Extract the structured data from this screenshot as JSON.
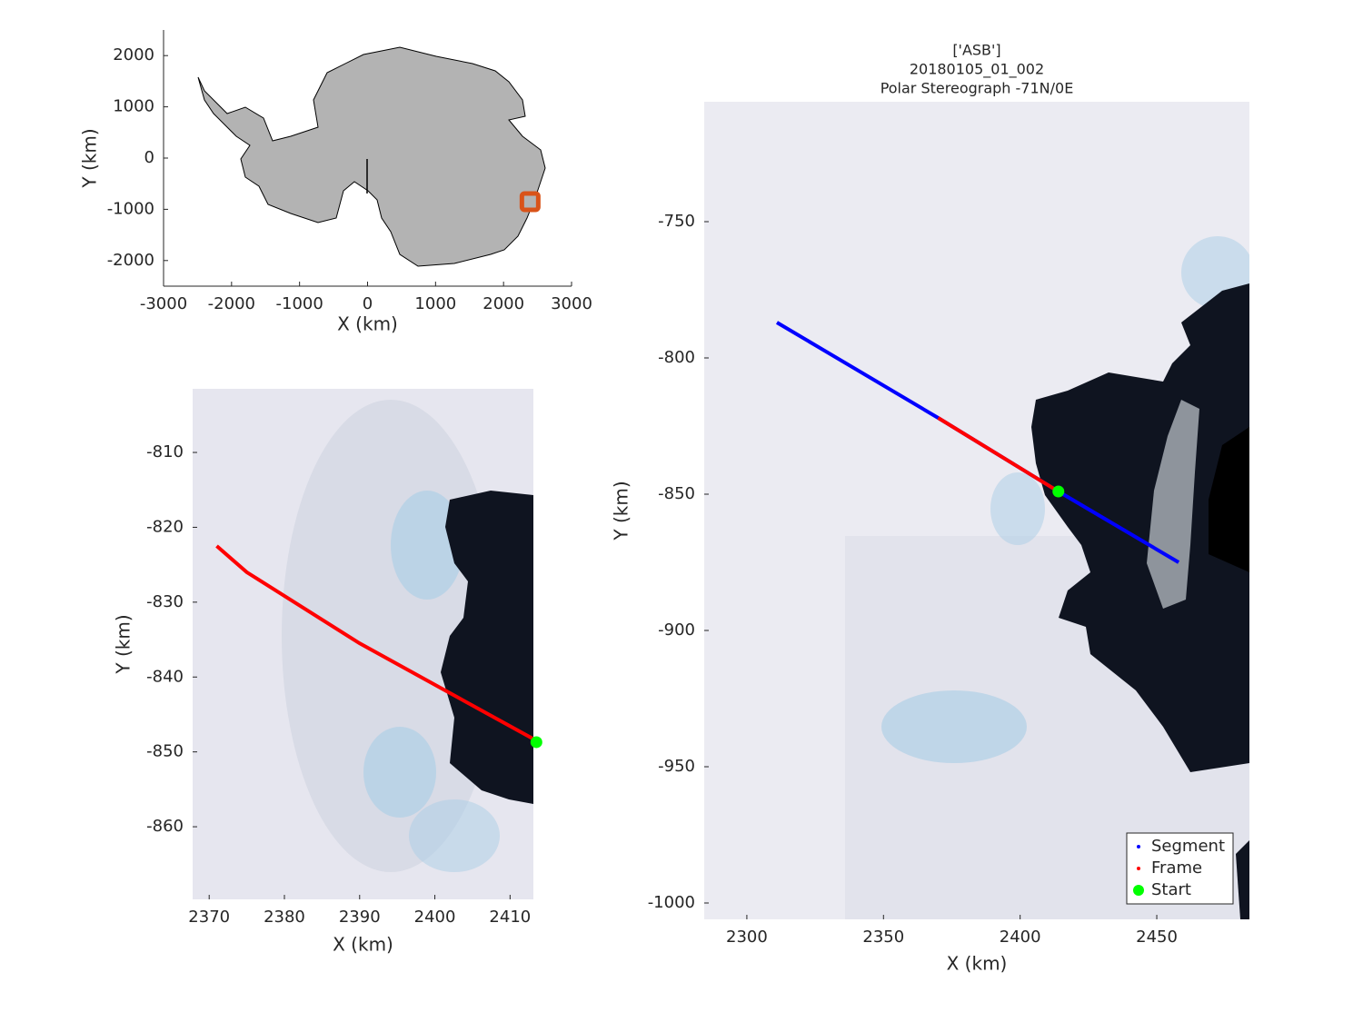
{
  "chart_data": [
    {
      "type": "map",
      "xlabel": "X (km)",
      "ylabel": "Y (km)",
      "xlim": [
        -3000,
        3000
      ],
      "ylim": [
        -2500,
        2500
      ],
      "xticks": [
        -3000,
        -2000,
        -1000,
        0,
        1000,
        2000,
        3000
      ],
      "yticks": [
        -2000,
        -1000,
        0,
        1000,
        2000
      ],
      "location": {
        "x": 2390,
        "y": -850,
        "color": "#d95319"
      }
    },
    {
      "type": "map",
      "xlabel": "X (km)",
      "ylabel": "Y (km)",
      "xlim": [
        2367.8,
        2413.1
      ],
      "ylim": [
        -869.7,
        -801.5
      ],
      "xticks": [
        2370,
        2380,
        2390,
        2400,
        2410
      ],
      "yticks": [
        -860,
        -850,
        -840,
        -830,
        -820,
        -810
      ],
      "series": [
        {
          "mode": "line",
          "color": "#ff0000",
          "x": [
            2371,
            2375,
            2390,
            2413.5
          ],
          "y": [
            -822.5,
            -826,
            -835.5,
            -848.5
          ]
        },
        {
          "mode": "marker",
          "color": "#00ff00",
          "x": [
            2413.5
          ],
          "y": [
            -848.7
          ]
        }
      ]
    },
    {
      "type": "map",
      "title": [
        "['ASB']",
        "20180105_01_002",
        "Polar Stereograph -71N/0E"
      ],
      "xlabel": "X (km)",
      "ylabel": "Y (km)",
      "xlim": [
        2284.4,
        2483.9
      ],
      "ylim": [
        -1006,
        -706
      ],
      "xticks": [
        2300,
        2350,
        2400,
        2450
      ],
      "yticks": [
        -1000,
        -950,
        -900,
        -850,
        -800,
        -750
      ],
      "legend": "southeast",
      "series": [
        {
          "name": "Segment",
          "mode": "line",
          "color": "#0000ff",
          "x": [
            2311,
            2370,
            2414,
            2458
          ],
          "y": [
            -787,
            -822,
            -849,
            -875
          ]
        },
        {
          "name": "Frame",
          "mode": "line",
          "color": "#ff0000",
          "x": [
            2370,
            2414
          ],
          "y": [
            -822,
            -849
          ]
        },
        {
          "name": "Start",
          "mode": "marker",
          "color": "#00ff00",
          "x": [
            2414
          ],
          "y": [
            -849
          ]
        }
      ]
    }
  ]
}
